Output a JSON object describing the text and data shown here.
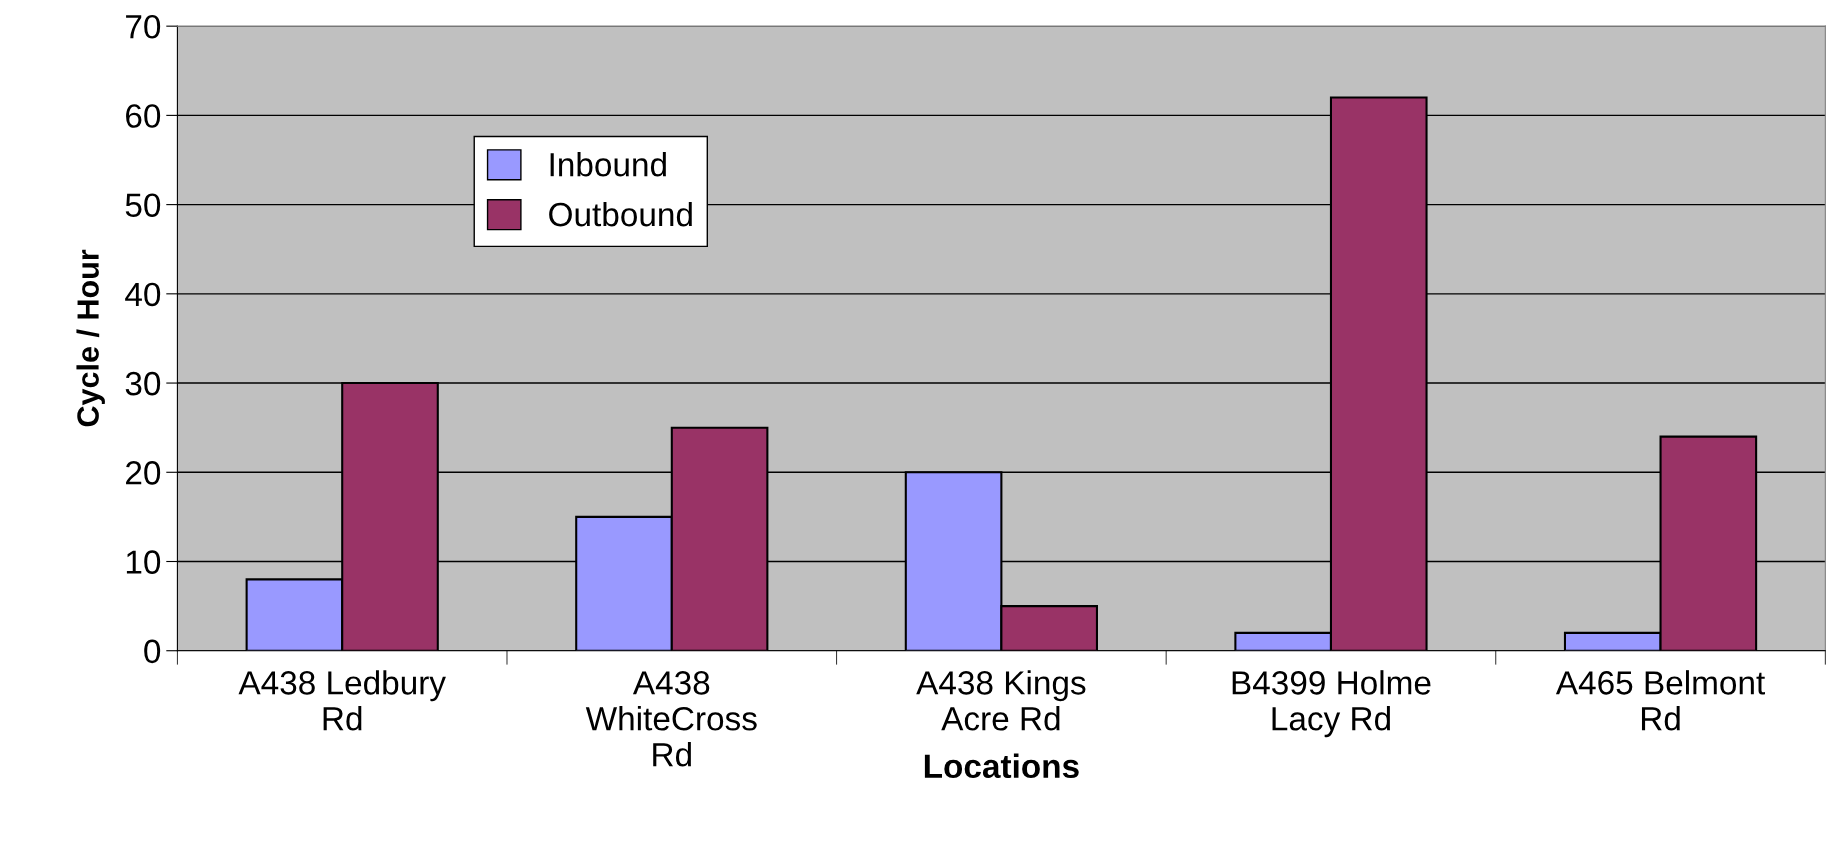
{
  "chart_data": {
    "type": "bar",
    "xlabel": "Locations",
    "ylabel": "Cycle / Hour",
    "categories": [
      "A438 Ledbury\nRd",
      "A438\nWhiteCross\nRd",
      "A438 Kings\nAcre Rd",
      "B4399 Holme\nLacy Rd",
      "A465 Belmont\nRd"
    ],
    "series": [
      {
        "name": "Inbound",
        "color": "#9999ff",
        "values": [
          8,
          15,
          20,
          2,
          2
        ]
      },
      {
        "name": "Outbound",
        "color": "#993366",
        "values": [
          30,
          25,
          5,
          62,
          24
        ]
      }
    ],
    "ylim": [
      0,
      70
    ],
    "yticks": [
      0,
      10,
      20,
      30,
      40,
      50,
      60,
      70
    ],
    "grid": "y",
    "legend": "top left"
  }
}
